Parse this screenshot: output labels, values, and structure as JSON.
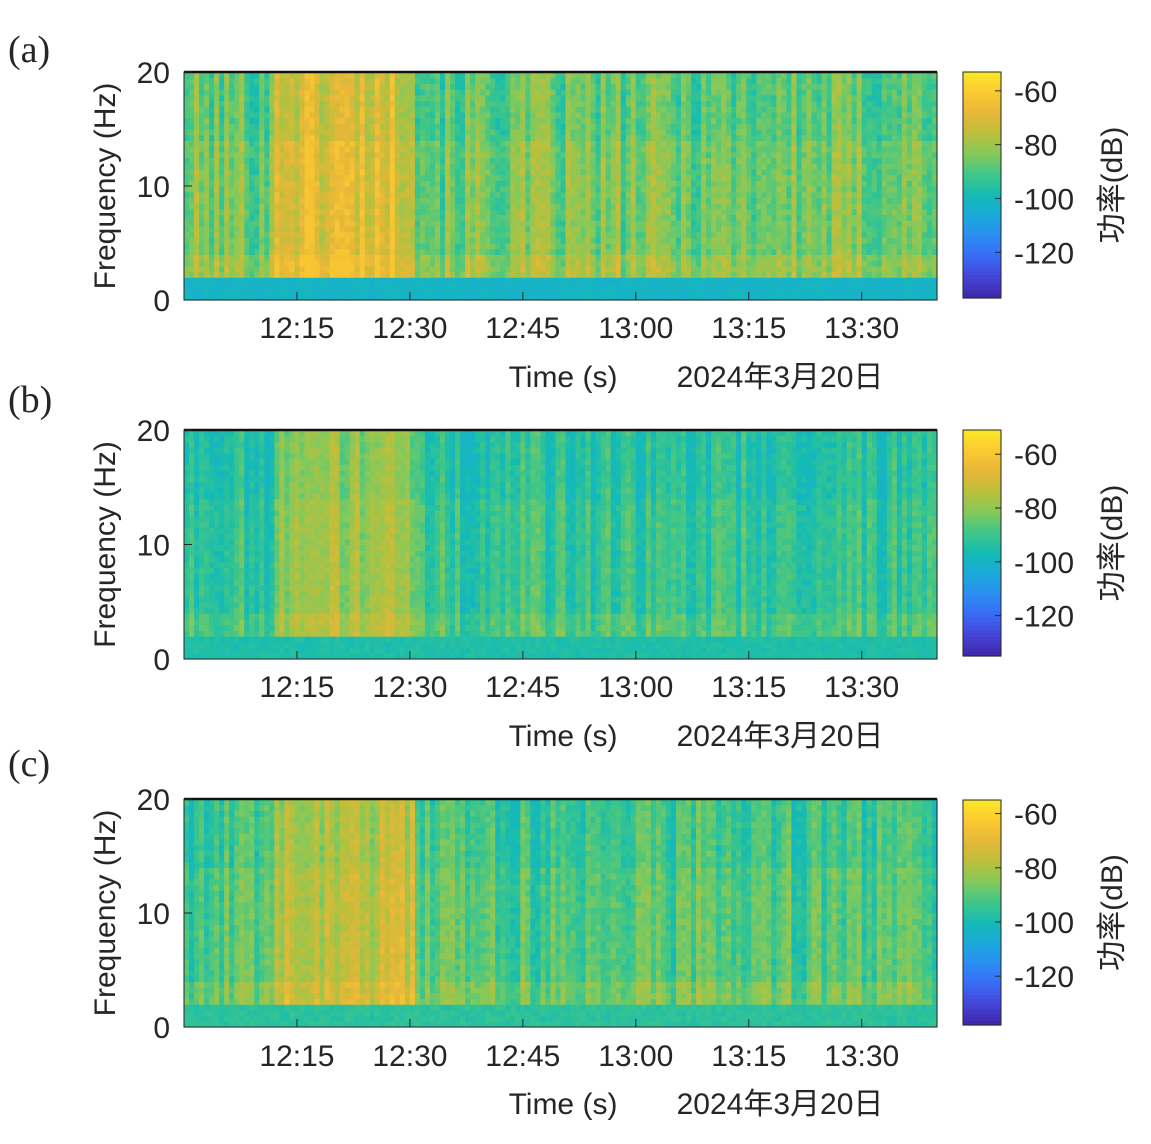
{
  "chart_data": [
    {
      "type": "heatmap",
      "panel_label": "(a)",
      "xlabel": "Time (s)",
      "date_label": "2024年3月20日",
      "ylabel": "Frequency (Hz)",
      "ylim": [
        0,
        20
      ],
      "yticks": [
        {
          "value": 0,
          "label": "0"
        },
        {
          "value": 10,
          "label": "10"
        },
        {
          "value": 20,
          "label": "20"
        }
      ],
      "xlim_min": [
        0,
        100
      ],
      "xticks": [
        {
          "value": 15,
          "label": "12:15"
        },
        {
          "value": 30,
          "label": "12:30"
        },
        {
          "value": 45,
          "label": "12:45"
        },
        {
          "value": 60,
          "label": "13:00"
        },
        {
          "value": 75,
          "label": "13:15"
        },
        {
          "value": 90,
          "label": "13:30"
        }
      ],
      "colorbar": {
        "label": "功率(dB)",
        "clim": [
          -137,
          -53
        ],
        "ticks": [
          {
            "value": -60,
            "label": "-60"
          },
          {
            "value": -80,
            "label": "-80"
          },
          {
            "value": -100,
            "label": "-100"
          },
          {
            "value": -120,
            "label": "-120"
          }
        ]
      },
      "power_range_db": [
        -105,
        -62
      ],
      "note": "background mostly -80 to -70 dB; strongest band ~12:15-12:30 at 3-10 Hz; low-frequency strip 0-2 Hz near -100 dB"
    },
    {
      "type": "heatmap",
      "panel_label": "(b)",
      "xlabel": "Time (s)",
      "date_label": "2024年3月20日",
      "ylabel": "Frequency (Hz)",
      "ylim": [
        0,
        20
      ],
      "yticks": [
        {
          "value": 0,
          "label": "0"
        },
        {
          "value": 10,
          "label": "10"
        },
        {
          "value": 20,
          "label": "20"
        }
      ],
      "xlim_min": [
        0,
        100
      ],
      "xticks": [
        {
          "value": 15,
          "label": "12:15"
        },
        {
          "value": 30,
          "label": "12:30"
        },
        {
          "value": 45,
          "label": "12:45"
        },
        {
          "value": 60,
          "label": "13:00"
        },
        {
          "value": 75,
          "label": "13:15"
        },
        {
          "value": 90,
          "label": "13:30"
        }
      ],
      "colorbar": {
        "label": "功率(dB)",
        "clim": [
          -135,
          -51
        ],
        "ticks": [
          {
            "value": -60,
            "label": "-60"
          },
          {
            "value": -80,
            "label": "-80"
          },
          {
            "value": -100,
            "label": "-100"
          },
          {
            "value": -120,
            "label": "-120"
          }
        ]
      },
      "power_range_db": [
        -100,
        -68
      ],
      "note": "background mostly -95 to -85 dB; activity band ~12:12-12:31; spots near 3 Hz"
    },
    {
      "type": "heatmap",
      "panel_label": "(c)",
      "xlabel": "Time (s)",
      "date_label": "2024年3月20日",
      "ylabel": "Frequency (Hz)",
      "ylim": [
        0,
        20
      ],
      "yticks": [
        {
          "value": 0,
          "label": "0"
        },
        {
          "value": 10,
          "label": "10"
        },
        {
          "value": 20,
          "label": "20"
        }
      ],
      "xlim_min": [
        0,
        100
      ],
      "xticks": [
        {
          "value": 15,
          "label": "12:15"
        },
        {
          "value": 30,
          "label": "12:30"
        },
        {
          "value": 45,
          "label": "12:45"
        },
        {
          "value": 60,
          "label": "13:00"
        },
        {
          "value": 75,
          "label": "13:15"
        },
        {
          "value": 90,
          "label": "13:30"
        }
      ],
      "colorbar": {
        "label": "功率(dB)",
        "clim": [
          -138,
          -55
        ],
        "ticks": [
          {
            "value": -60,
            "label": "-60"
          },
          {
            "value": -80,
            "label": "-80"
          },
          {
            "value": -100,
            "label": "-100"
          },
          {
            "value": -120,
            "label": "-120"
          }
        ]
      },
      "power_range_db": [
        -102,
        -65
      ],
      "note": "background mostly -100 to -85 dB; activity band ~12:12-12:31; spots near 3 Hz"
    }
  ],
  "colormap": [
    "#3e26a8",
    "#4544d6",
    "#3a6af7",
    "#2c8ef2",
    "#1ba9db",
    "#14bbb4",
    "#3fc688",
    "#85c95a",
    "#bcbf3b",
    "#e7b739",
    "#fbc931",
    "#f9e926"
  ]
}
